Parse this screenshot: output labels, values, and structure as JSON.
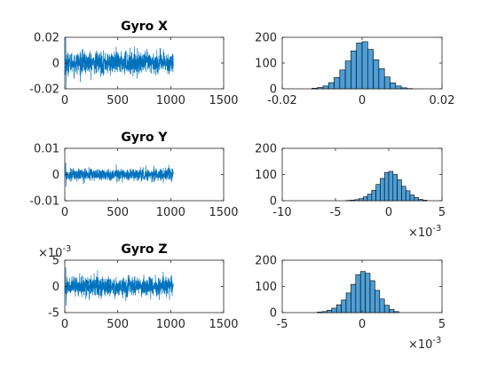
{
  "chart_data": [
    {
      "type": "line",
      "title": "Gyro X",
      "xlim": [
        0,
        1500
      ],
      "ylim": [
        -0.02,
        0.02
      ],
      "xticks": [
        "0",
        "500",
        "1000",
        "1500"
      ],
      "yticks": [
        "-0.02",
        "0",
        "0.02"
      ],
      "y_exponent": "",
      "samples": 1024,
      "signal": {
        "mean": 0,
        "std": 0.0042,
        "max_abs": 0.019
      },
      "color": "#0072BD"
    },
    {
      "type": "bar",
      "title": "",
      "xlim": [
        -0.02,
        0.02
      ],
      "ylim": [
        0,
        200
      ],
      "xticks": [
        "-0.02",
        "0",
        "0.02"
      ],
      "yticks": [
        "0",
        "100",
        "200"
      ],
      "x_exponent": "",
      "bin_edges": [
        -0.0126,
        -0.0112,
        -0.0098,
        -0.0084,
        -0.007,
        -0.0056,
        -0.0042,
        -0.0028,
        -0.0014,
        0,
        0.0014,
        0.0028,
        0.0042,
        0.0056,
        0.007,
        0.0084,
        0.0098,
        0.0112,
        0.0126
      ],
      "counts": [
        2,
        5,
        11,
        24,
        44,
        73,
        108,
        147,
        178,
        183,
        153,
        113,
        78,
        46,
        23,
        11,
        4,
        1
      ],
      "color": "#4D9ED6"
    },
    {
      "type": "line",
      "title": "Gyro Y",
      "xlim": [
        0,
        1500
      ],
      "ylim": [
        -0.01,
        0.01
      ],
      "xticks": [
        "0",
        "500",
        "1000",
        "1500"
      ],
      "yticks": [
        "-0.01",
        "0",
        "0.01"
      ],
      "y_exponent": "",
      "samples": 1024,
      "signal": {
        "mean": 0,
        "std": 0.0011,
        "max_abs": 0.0045
      },
      "color": "#0072BD"
    },
    {
      "type": "bar",
      "title": "",
      "xlim": [
        -10,
        5
      ],
      "ylim": [
        0,
        200
      ],
      "xticks": [
        "-10",
        "-5",
        "0",
        "5"
      ],
      "yticks": [
        "0",
        "100",
        "200"
      ],
      "x_exponent": "3",
      "bin_edges": [
        -4,
        -3.6,
        -3.2,
        -2.8,
        -2.4,
        -2,
        -1.6,
        -1.2,
        -0.8,
        -0.4,
        0,
        0.4,
        0.8,
        1.2,
        1.6,
        2,
        2.4,
        2.8,
        3.2,
        3.6
      ],
      "counts": [
        1,
        2,
        4,
        8,
        15,
        25,
        40,
        62,
        85,
        108,
        112,
        100,
        80,
        55,
        38,
        22,
        12,
        5,
        2
      ],
      "color": "#4D9ED6"
    },
    {
      "type": "line",
      "title": "Gyro Z",
      "xlim": [
        0,
        1500
      ],
      "ylim": [
        -5,
        5
      ],
      "xticks": [
        "0",
        "500",
        "1000",
        "1500"
      ],
      "yticks": [
        "-5",
        "0",
        "5"
      ],
      "y_exponent": "3",
      "samples": 1024,
      "signal": {
        "mean": 0,
        "std": 0.9,
        "max_abs": 3.6
      },
      "color": "#0072BD"
    },
    {
      "type": "bar",
      "title": "",
      "xlim": [
        -5,
        5
      ],
      "ylim": [
        0,
        200
      ],
      "xticks": [
        "-5",
        "0",
        "5"
      ],
      "yticks": [
        "0",
        "100",
        "200"
      ],
      "x_exponent": "3",
      "bin_edges": [
        -2.8,
        -2.5,
        -2.2,
        -1.9,
        -1.6,
        -1.3,
        -1,
        -0.7,
        -0.4,
        -0.1,
        0.2,
        0.5,
        0.8,
        1.1,
        1.4,
        1.7,
        2.0,
        2.3
      ],
      "counts": [
        2,
        4,
        9,
        17,
        30,
        48,
        75,
        108,
        145,
        157,
        150,
        122,
        85,
        52,
        28,
        12,
        4
      ],
      "color": "#4D9ED6"
    }
  ]
}
